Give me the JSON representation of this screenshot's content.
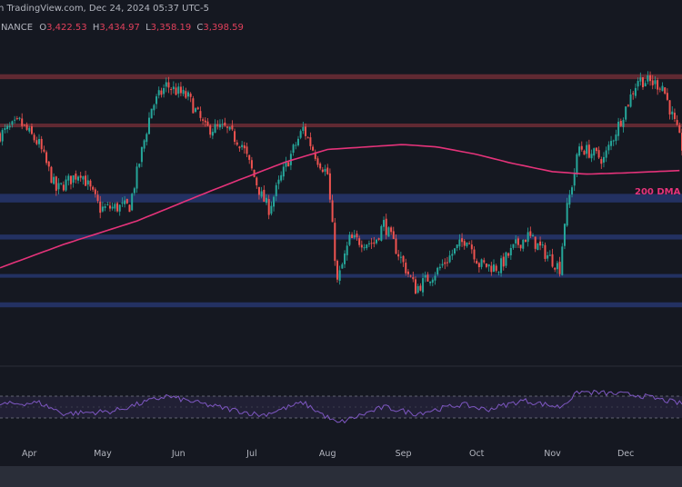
{
  "header": {
    "source_line": "n TradingView.com, Dec 24, 2024 05:37 UTC-5",
    "exchange": "INANCE",
    "ohlc": {
      "o_key": "O",
      "o_val": "3,422.53",
      "h_key": "H",
      "h_val": "3,434.97",
      "l_key": "L",
      "l_val": "3,358.19",
      "c_key": "C",
      "c_val": "3,398.59"
    }
  },
  "ma_label": "200 DMA",
  "colors": {
    "background": "#151821",
    "bull": "#26a69a",
    "bear": "#ef5350",
    "ma": "#e5337a",
    "resistance": "#7a2f38",
    "support": "#283a78",
    "rsi": "#7e57c2"
  },
  "chart_data": {
    "type": "candlestick",
    "x_tick_labels": [
      "Apr",
      "May",
      "Jun",
      "Jul",
      "Aug",
      "Sep",
      "Oct",
      "Nov",
      "Dec"
    ],
    "x_range": [
      "2024-03-20",
      "2024-12-24"
    ],
    "y_range": [
      2050,
      4150
    ],
    "last_ohlc": {
      "open": 3422.53,
      "high": 3434.97,
      "low": 3358.19,
      "close": 3398.59
    },
    "horizontal_zones": [
      {
        "type": "resistance",
        "low": 3950,
        "high": 3990
      },
      {
        "type": "resistance",
        "low": 3560,
        "high": 3590
      },
      {
        "type": "support",
        "low": 2950,
        "high": 3020
      },
      {
        "type": "support",
        "low": 2650,
        "high": 2690
      },
      {
        "type": "support",
        "low": 2340,
        "high": 2370
      },
      {
        "type": "support",
        "low": 2100,
        "high": 2140
      }
    ],
    "close_path": [
      [
        "2024-03-20",
        3500
      ],
      [
        "2024-03-28",
        3600
      ],
      [
        "2024-04-05",
        3420
      ],
      [
        "2024-04-12",
        3050
      ],
      [
        "2024-04-22",
        3200
      ],
      [
        "2024-04-30",
        2900
      ],
      [
        "2024-05-12",
        2920
      ],
      [
        "2024-05-21",
        3720
      ],
      [
        "2024-05-27",
        3900
      ],
      [
        "2024-06-05",
        3800
      ],
      [
        "2024-06-12",
        3550
      ],
      [
        "2024-06-20",
        3550
      ],
      [
        "2024-06-27",
        3420
      ],
      [
        "2024-07-05",
        3000
      ],
      [
        "2024-07-08",
        2900
      ],
      [
        "2024-07-15",
        3250
      ],
      [
        "2024-07-22",
        3550
      ],
      [
        "2024-07-28",
        3300
      ],
      [
        "2024-08-01",
        3180
      ],
      [
        "2024-08-05",
        2300
      ],
      [
        "2024-08-10",
        2650
      ],
      [
        "2024-08-20",
        2620
      ],
      [
        "2024-08-24",
        2780
      ],
      [
        "2024-09-06",
        2250
      ],
      [
        "2024-09-15",
        2400
      ],
      [
        "2024-09-27",
        2670
      ],
      [
        "2024-10-02",
        2450
      ],
      [
        "2024-10-10",
        2420
      ],
      [
        "2024-10-17",
        2600
      ],
      [
        "2024-10-22",
        2680
      ],
      [
        "2024-11-04",
        2420
      ],
      [
        "2024-11-06",
        2800
      ],
      [
        "2024-11-12",
        3400
      ],
      [
        "2024-11-22",
        3300
      ],
      [
        "2024-12-06",
        3950
      ],
      [
        "2024-12-16",
        3900
      ],
      [
        "2024-12-24",
        3400
      ]
    ],
    "ma200_path": [
      [
        "2024-03-20",
        2420
      ],
      [
        "2024-04-15",
        2610
      ],
      [
        "2024-05-15",
        2800
      ],
      [
        "2024-06-15",
        3050
      ],
      [
        "2024-07-15",
        3280
      ],
      [
        "2024-08-01",
        3380
      ],
      [
        "2024-09-01",
        3420
      ],
      [
        "2024-09-15",
        3400
      ],
      [
        "2024-10-01",
        3340
      ],
      [
        "2024-10-15",
        3270
      ],
      [
        "2024-11-01",
        3200
      ],
      [
        "2024-11-15",
        3180
      ],
      [
        "2024-12-01",
        3190
      ],
      [
        "2024-12-24",
        3210
      ]
    ],
    "rsi": {
      "range": [
        0,
        100
      ],
      "upper_band": 70,
      "lower_band": 30,
      "path": [
        [
          "2024-03-20",
          55
        ],
        [
          "2024-04-05",
          58
        ],
        [
          "2024-04-15",
          38
        ],
        [
          "2024-05-05",
          42
        ],
        [
          "2024-05-27",
          70
        ],
        [
          "2024-06-15",
          52
        ],
        [
          "2024-07-05",
          35
        ],
        [
          "2024-07-22",
          58
        ],
        [
          "2024-08-05",
          20
        ],
        [
          "2024-08-24",
          50
        ],
        [
          "2024-09-06",
          38
        ],
        [
          "2024-09-25",
          55
        ],
        [
          "2024-10-05",
          45
        ],
        [
          "2024-10-20",
          62
        ],
        [
          "2024-11-04",
          50
        ],
        [
          "2024-11-12",
          78
        ],
        [
          "2024-12-06",
          72
        ],
        [
          "2024-12-24",
          56
        ]
      ]
    }
  }
}
